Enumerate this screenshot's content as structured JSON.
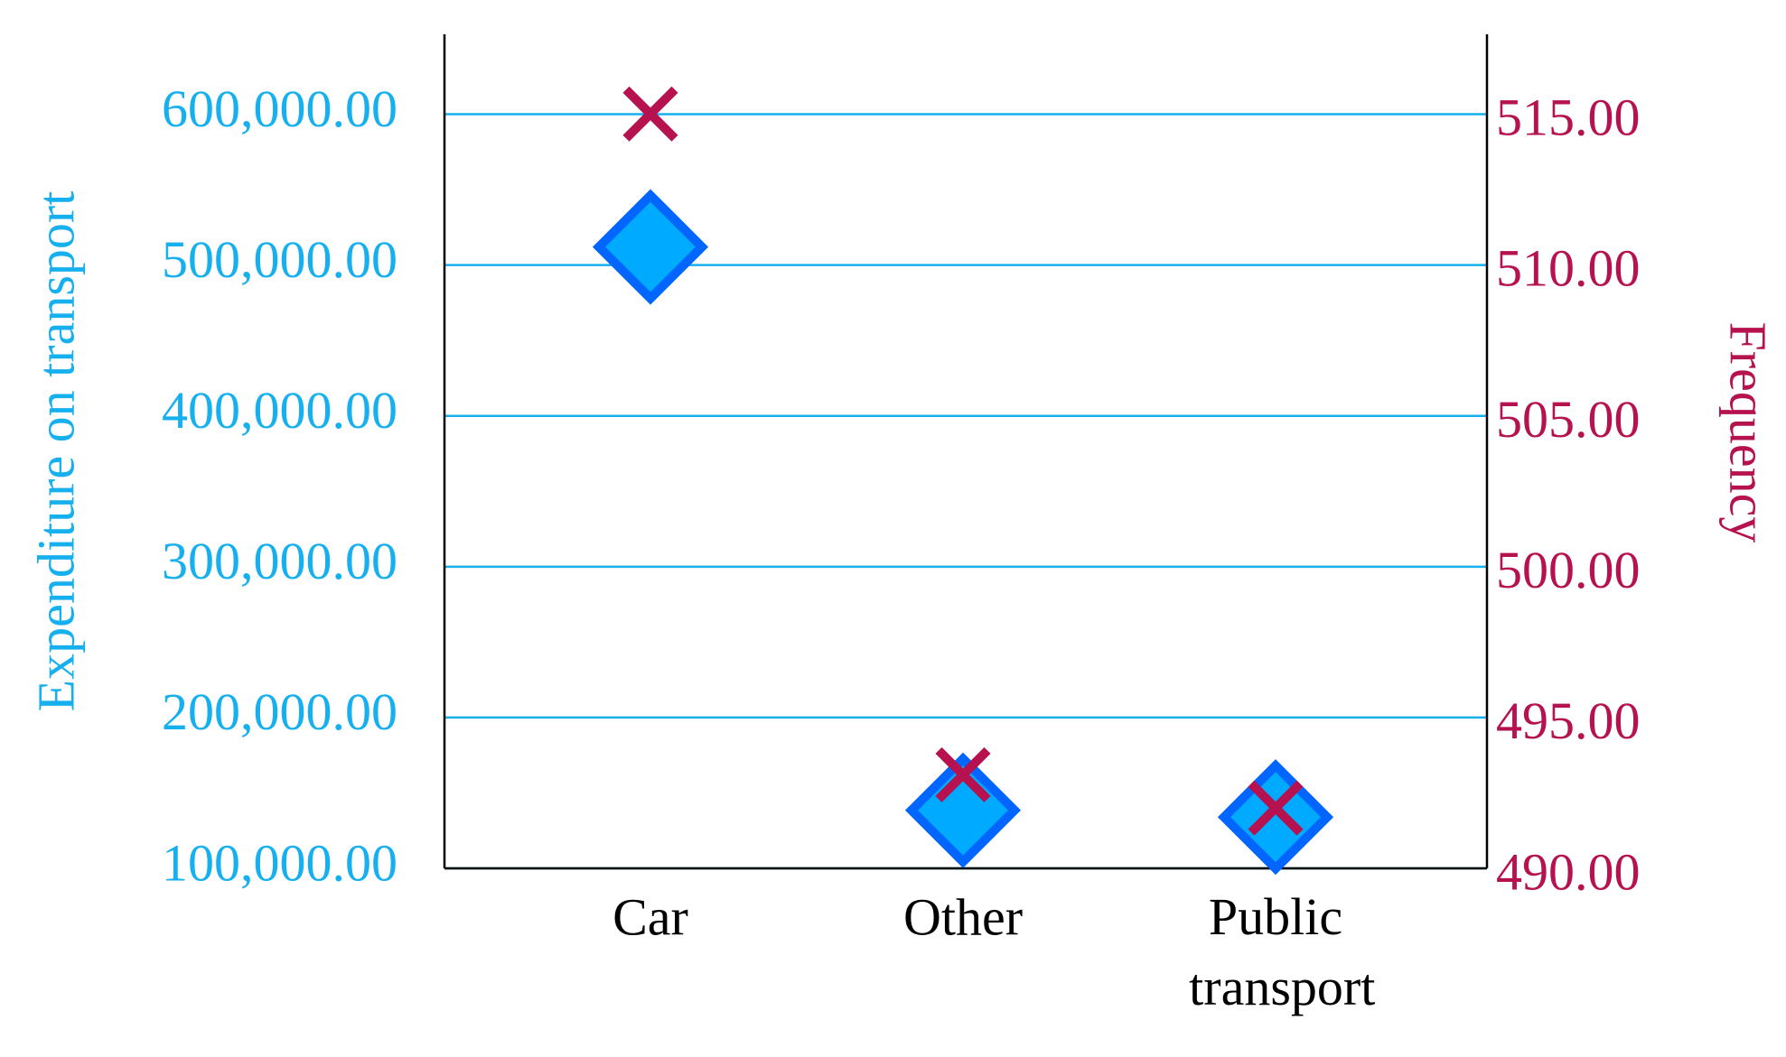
{
  "chart_data": {
    "type": "scatter",
    "categories": [
      "Car",
      "Other",
      "Public transport"
    ],
    "y_label": "Expenditure on transport",
    "y2_label": "Frequency",
    "ylim": [
      100000,
      653000
    ],
    "yticks": [
      {
        "value": 100000,
        "label": "100,000.00"
      },
      {
        "value": 200000,
        "label": "200,000.00"
      },
      {
        "value": 300000,
        "label": "300,000.00"
      },
      {
        "value": 400000,
        "label": "400,000.00"
      },
      {
        "value": 500000,
        "label": "500,000.00"
      },
      {
        "value": 600000,
        "label": "600,000.00"
      }
    ],
    "y2lim": [
      490,
      517.64
    ],
    "y2ticks": [
      {
        "value": 490,
        "label": "490.00"
      },
      {
        "value": 495,
        "label": "495.00"
      },
      {
        "value": 500,
        "label": "500.00"
      },
      {
        "value": 505,
        "label": "505.00"
      },
      {
        "value": 510,
        "label": "510.00"
      },
      {
        "value": 515,
        "label": "515.00"
      }
    ],
    "grid": true,
    "y_color": "#17b0ee",
    "y2_color": "#b5124f",
    "series": [
      {
        "marker": "diamond",
        "color": "#00aaff",
        "edge_color": "#0066ff",
        "values": [
          512000,
          138500,
          134000
        ]
      },
      {
        "marker": "x",
        "color": "#b5124f",
        "axis": "y2",
        "values": [
          515.0,
          493.1,
          492.0
        ]
      }
    ]
  }
}
